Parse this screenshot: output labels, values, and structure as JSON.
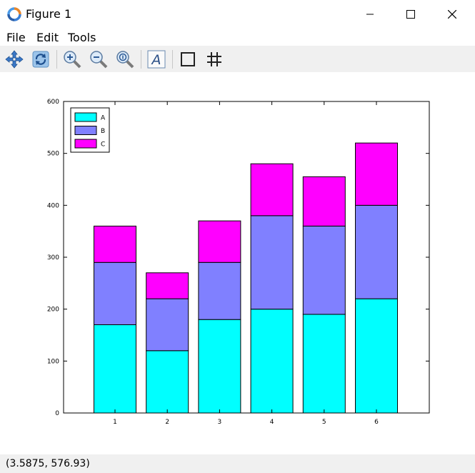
{
  "window": {
    "title": "Figure 1"
  },
  "menu": {
    "file": "File",
    "edit": "Edit",
    "tools": "Tools"
  },
  "toolbar": {
    "icons": [
      "pan-icon",
      "rotate-icon",
      "zoom-in-icon",
      "zoom-out-icon",
      "zoom-reset-icon",
      "text-icon",
      "box-icon",
      "grid-icon"
    ]
  },
  "status": {
    "coords": "(3.5875, 576.93)"
  },
  "colors": {
    "A": "#00ffff",
    "B": "#8080ff",
    "C": "#ff00ff"
  },
  "chart_data": {
    "type": "bar",
    "stacked": true,
    "categories": [
      "1",
      "2",
      "3",
      "4",
      "5",
      "6"
    ],
    "series": [
      {
        "name": "A",
        "values": [
          170,
          120,
          180,
          200,
          190,
          220
        ]
      },
      {
        "name": "B",
        "values": [
          120,
          100,
          110,
          180,
          170,
          180
        ]
      },
      {
        "name": "C",
        "values": [
          70,
          50,
          80,
          100,
          95,
          120
        ]
      }
    ],
    "ylim": [
      0,
      600
    ],
    "yticks": [
      "0",
      "100",
      "200",
      "300",
      "400",
      "500",
      "600"
    ],
    "legend": "top-left",
    "grid": false
  }
}
